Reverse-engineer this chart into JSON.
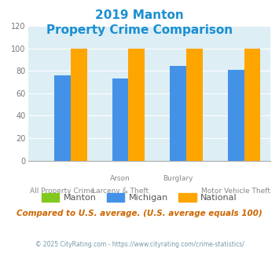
{
  "title_line1": "2019 Manton",
  "title_line2": "Property Crime Comparison",
  "title_color": "#1a8fd1",
  "group_labels_top": [
    "",
    "Arson",
    "Burglary",
    ""
  ],
  "group_labels_bottom": [
    "All Property Crime",
    "Larceny & Theft",
    "",
    "Motor Vehicle Theft"
  ],
  "manton_values": [
    0,
    0,
    0,
    0
  ],
  "michigan_values": [
    76,
    73,
    84,
    81
  ],
  "national_values": [
    100,
    100,
    100,
    100
  ],
  "manton_color": "#82c91e",
  "michigan_color": "#4492e8",
  "national_color": "#ffa500",
  "ylim": [
    0,
    120
  ],
  "yticks": [
    0,
    20,
    40,
    60,
    80,
    100,
    120
  ],
  "legend_labels": [
    "Manton",
    "Michigan",
    "National"
  ],
  "footnote1": "Compared to U.S. average. (U.S. average equals 100)",
  "footnote2": "© 2025 CityRating.com - https://www.cityrating.com/crime-statistics/",
  "plot_bg_color": "#ddeef5",
  "fig_bg_color": "#ffffff"
}
